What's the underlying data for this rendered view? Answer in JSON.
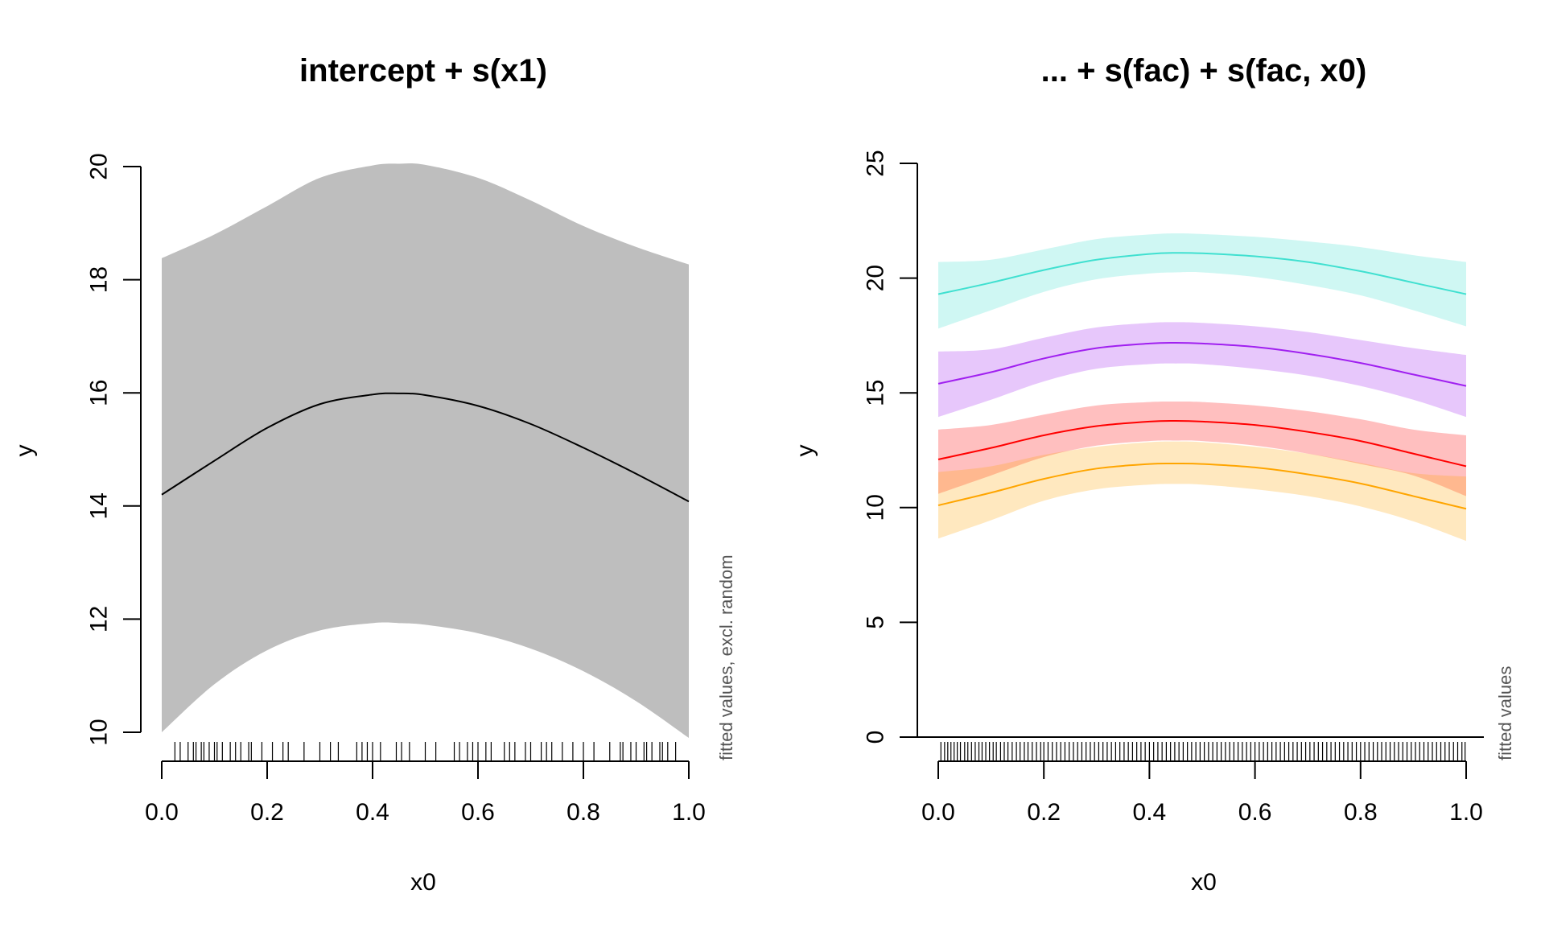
{
  "chart_data": [
    {
      "type": "line",
      "title": "intercept + s(x1)",
      "xlabel": "x0",
      "ylabel": "y",
      "side_note": "fitted values, excl. random",
      "xlim": [
        0,
        1
      ],
      "ylim": [
        10,
        20
      ],
      "x_ticks": [
        "0.0",
        "0.2",
        "0.4",
        "0.6",
        "0.8",
        "1.0"
      ],
      "y_ticks": [
        "10",
        "12",
        "14",
        "16",
        "18",
        "20"
      ],
      "grid": false,
      "x": [
        0.0,
        0.1,
        0.2,
        0.3,
        0.4,
        0.45,
        0.5,
        0.6,
        0.7,
        0.8,
        0.9,
        1.0
      ],
      "series": [
        {
          "color": "#000000",
          "band_color": "#bebebe",
          "y": [
            14.2,
            14.8,
            15.38,
            15.8,
            15.97,
            15.99,
            15.96,
            15.77,
            15.45,
            15.03,
            14.57,
            14.08
          ],
          "lower": [
            10.0,
            10.85,
            11.45,
            11.8,
            11.93,
            11.93,
            11.9,
            11.75,
            11.48,
            11.08,
            10.55,
            9.9
          ],
          "upper": [
            18.38,
            18.8,
            19.3,
            19.8,
            20.02,
            20.05,
            20.03,
            19.8,
            19.4,
            18.95,
            18.58,
            18.27
          ]
        }
      ],
      "rug": [
        0.025,
        0.035,
        0.05,
        0.06,
        0.065,
        0.075,
        0.08,
        0.09,
        0.1,
        0.105,
        0.115,
        0.13,
        0.14,
        0.15,
        0.165,
        0.17,
        0.19,
        0.21,
        0.23,
        0.24,
        0.27,
        0.3,
        0.32,
        0.335,
        0.37,
        0.38,
        0.39,
        0.4,
        0.415,
        0.445,
        0.455,
        0.47,
        0.5,
        0.52,
        0.555,
        0.565,
        0.58,
        0.59,
        0.6,
        0.615,
        0.625,
        0.65,
        0.66,
        0.67,
        0.69,
        0.7,
        0.72,
        0.73,
        0.74,
        0.76,
        0.78,
        0.8,
        0.82,
        0.85,
        0.87,
        0.875,
        0.89,
        0.9,
        0.915,
        0.92,
        0.93,
        0.945,
        0.95,
        0.96,
        0.975
      ]
    },
    {
      "type": "line",
      "title": "... + s(fac) + s(fac, x0)",
      "xlabel": "x0",
      "ylabel": "y",
      "side_note": "fitted values",
      "xlim": [
        0,
        1
      ],
      "ylim": [
        0,
        25
      ],
      "x_ticks": [
        "0.0",
        "0.2",
        "0.4",
        "0.6",
        "0.8",
        "1.0"
      ],
      "y_ticks": [
        "0",
        "5",
        "10",
        "15",
        "20",
        "25"
      ],
      "grid": false,
      "x": [
        0.0,
        0.1,
        0.2,
        0.3,
        0.4,
        0.45,
        0.5,
        0.6,
        0.7,
        0.8,
        0.9,
        1.0
      ],
      "series": [
        {
          "color": "#40e0d0",
          "band_color": "rgba(64,224,208,0.25)",
          "y": [
            19.3,
            19.8,
            20.35,
            20.8,
            21.05,
            21.1,
            21.08,
            20.95,
            20.7,
            20.3,
            19.8,
            19.3
          ],
          "lower": [
            17.8,
            18.6,
            19.4,
            19.95,
            20.2,
            20.25,
            20.25,
            20.05,
            19.7,
            19.25,
            18.6,
            17.9
          ],
          "upper": [
            20.7,
            20.8,
            21.25,
            21.7,
            21.9,
            21.95,
            21.92,
            21.8,
            21.6,
            21.35,
            21.0,
            20.7
          ]
        },
        {
          "color": "#a020f0",
          "band_color": "rgba(160,32,240,0.25)",
          "y": [
            15.4,
            15.9,
            16.5,
            16.95,
            17.15,
            17.18,
            17.15,
            17.0,
            16.7,
            16.3,
            15.8,
            15.3
          ],
          "lower": [
            13.95,
            14.7,
            15.5,
            16.05,
            16.25,
            16.28,
            16.25,
            16.05,
            15.75,
            15.3,
            14.7,
            13.95
          ],
          "upper": [
            16.8,
            16.9,
            17.4,
            17.85,
            18.05,
            18.08,
            18.05,
            17.9,
            17.65,
            17.3,
            16.95,
            16.65
          ]
        },
        {
          "color": "#ff0000",
          "band_color": "rgba(255,0,0,0.25)",
          "y": [
            12.1,
            12.6,
            13.15,
            13.55,
            13.75,
            13.78,
            13.75,
            13.6,
            13.3,
            12.9,
            12.35,
            11.8
          ],
          "lower": [
            10.6,
            11.4,
            12.2,
            12.7,
            12.9,
            12.92,
            12.9,
            12.7,
            12.35,
            11.9,
            11.4,
            10.5
          ],
          "upper": [
            13.4,
            13.6,
            14.05,
            14.45,
            14.6,
            14.62,
            14.6,
            14.45,
            14.2,
            13.85,
            13.4,
            13.15
          ]
        },
        {
          "color": "#ffa500",
          "band_color": "rgba(255,165,0,0.25)",
          "y": [
            10.1,
            10.65,
            11.25,
            11.7,
            11.9,
            11.92,
            11.9,
            11.75,
            11.45,
            11.05,
            10.5,
            9.95
          ],
          "lower": [
            8.65,
            9.45,
            10.3,
            10.8,
            11.0,
            11.03,
            11.0,
            10.8,
            10.5,
            10.05,
            9.4,
            8.55
          ],
          "upper": [
            11.55,
            11.8,
            12.3,
            12.65,
            12.85,
            12.88,
            12.85,
            12.65,
            12.35,
            11.95,
            11.5,
            11.35
          ]
        }
      ],
      "rug": [
        0.005,
        0.012,
        0.018,
        0.024,
        0.03,
        0.036,
        0.042,
        0.05,
        0.056,
        0.063,
        0.07,
        0.077,
        0.083,
        0.09,
        0.097,
        0.104,
        0.11,
        0.118,
        0.125,
        0.132,
        0.14,
        0.148,
        0.155,
        0.163,
        0.17,
        0.178,
        0.186,
        0.194,
        0.2,
        0.208,
        0.216,
        0.224,
        0.232,
        0.24,
        0.248,
        0.256,
        0.264,
        0.272,
        0.28,
        0.288,
        0.296,
        0.304,
        0.312,
        0.32,
        0.328,
        0.336,
        0.344,
        0.352,
        0.36,
        0.368,
        0.376,
        0.384,
        0.392,
        0.4,
        0.408,
        0.416,
        0.424,
        0.432,
        0.44,
        0.448,
        0.456,
        0.464,
        0.472,
        0.48,
        0.488,
        0.496,
        0.504,
        0.512,
        0.52,
        0.528,
        0.536,
        0.544,
        0.552,
        0.56,
        0.568,
        0.576,
        0.584,
        0.592,
        0.6,
        0.608,
        0.616,
        0.624,
        0.632,
        0.64,
        0.648,
        0.656,
        0.664,
        0.672,
        0.68,
        0.688,
        0.696,
        0.704,
        0.712,
        0.72,
        0.728,
        0.736,
        0.744,
        0.752,
        0.76,
        0.768,
        0.776,
        0.784,
        0.792,
        0.8,
        0.808,
        0.816,
        0.824,
        0.832,
        0.84,
        0.848,
        0.856,
        0.864,
        0.872,
        0.88,
        0.888,
        0.896,
        0.904,
        0.912,
        0.92,
        0.928,
        0.936,
        0.944,
        0.952,
        0.96,
        0.968,
        0.976,
        0.984,
        0.992,
        0.998
      ]
    }
  ]
}
